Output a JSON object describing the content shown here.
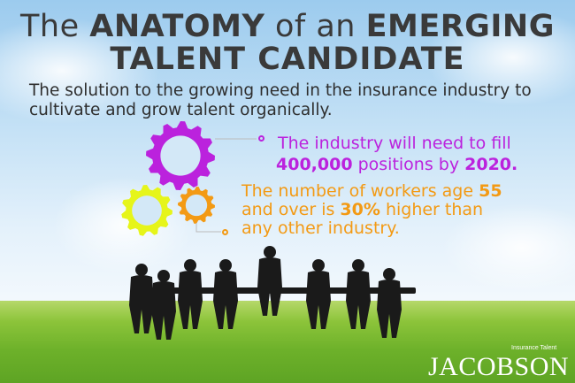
{
  "title": {
    "line1_pre": "The ",
    "line1_b1": "ANATOMY",
    "line1_mid": " of an ",
    "line1_b2": "EMERGING",
    "line2": "TALENT CANDIDATE"
  },
  "subtitle": "The solution to the growing need in the insurance industry to cultivate and grow talent organically.",
  "fact1": {
    "text1": "The industry will need to fill",
    "num": "400,000",
    "text2": " positions by ",
    "year": "2020."
  },
  "fact2": {
    "t1": "The number of workers age ",
    "n1": "55",
    "t2": "and over is ",
    "n2": "30%",
    "t3": " higher than",
    "t4": "any other industry."
  },
  "colors": {
    "purple": "#bb22dd",
    "yellow": "#e6f51a",
    "orange": "#f39a14"
  },
  "logo": {
    "tagline": "Insurance Talent",
    "name": "JACOBSON"
  }
}
